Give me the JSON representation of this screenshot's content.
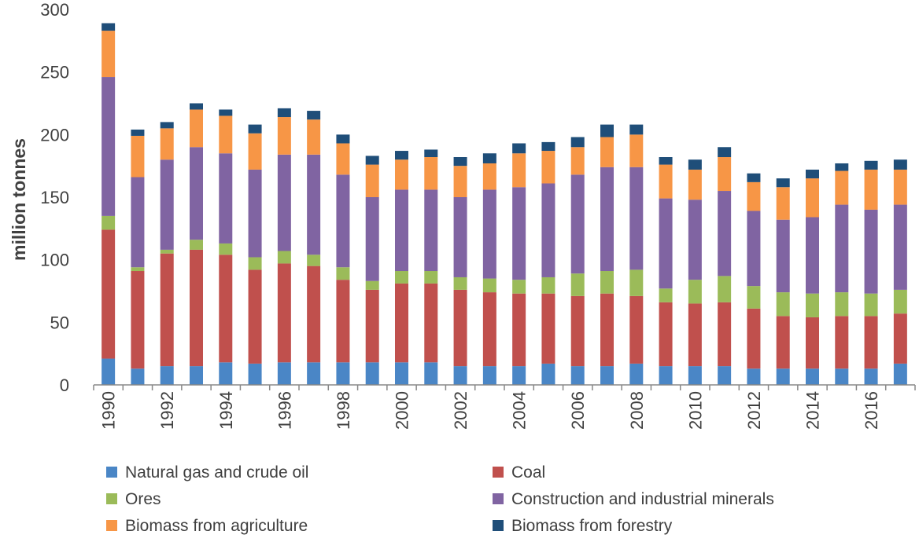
{
  "chart_data": {
    "type": "bar",
    "stacked": true,
    "title": "",
    "xlabel": "",
    "ylabel": "million tonnes",
    "ylim": [
      0,
      300
    ],
    "yticks": [
      0,
      50,
      100,
      150,
      200,
      250,
      300
    ],
    "grid": false,
    "legend_position": "bottom",
    "categories": [
      "1990",
      "1991",
      "1992",
      "1993",
      "1994",
      "1995",
      "1996",
      "1997",
      "1998",
      "1999",
      "2000",
      "2001",
      "2002",
      "2003",
      "2004",
      "2005",
      "2006",
      "2007",
      "2008",
      "2009",
      "2010",
      "2011",
      "2012",
      "2013",
      "2014",
      "2015",
      "2016",
      "2017"
    ],
    "x_tick_labels": [
      "1990",
      "",
      "1992",
      "",
      "1994",
      "",
      "1996",
      "",
      "1998",
      "",
      "2000",
      "",
      "2002",
      "",
      "2004",
      "",
      "2006",
      "",
      "2008",
      "",
      "2010",
      "",
      "2012",
      "",
      "2014",
      "",
      "2016",
      ""
    ],
    "series": [
      {
        "name": "Natural gas and crude oil",
        "color": "#4a86c6",
        "values": [
          21,
          13,
          15,
          15,
          18,
          17,
          18,
          18,
          18,
          18,
          18,
          18,
          15,
          15,
          15,
          17,
          15,
          15,
          17,
          15,
          15,
          15,
          13,
          13,
          13,
          13,
          13,
          17
        ]
      },
      {
        "name": "Coal",
        "color": "#c0504d",
        "values": [
          103,
          78,
          90,
          93,
          86,
          75,
          79,
          77,
          66,
          58,
          63,
          63,
          61,
          59,
          58,
          56,
          56,
          58,
          54,
          51,
          50,
          51,
          48,
          42,
          41,
          42,
          42,
          40
        ]
      },
      {
        "name": "Ores",
        "color": "#9bbb59",
        "values": [
          11,
          3,
          3,
          8,
          9,
          10,
          10,
          9,
          10,
          7,
          10,
          10,
          10,
          11,
          11,
          13,
          18,
          18,
          21,
          11,
          19,
          21,
          18,
          19,
          19,
          19,
          18,
          19
        ]
      },
      {
        "name": "Construction and industrial minerals",
        "color": "#8064a2",
        "values": [
          111,
          72,
          72,
          74,
          72,
          70,
          77,
          80,
          74,
          67,
          65,
          65,
          64,
          71,
          74,
          75,
          79,
          83,
          82,
          72,
          64,
          68,
          60,
          58,
          61,
          70,
          67,
          68
        ]
      },
      {
        "name": "Biomass from agriculture",
        "color": "#f79646",
        "values": [
          37,
          33,
          25,
          30,
          30,
          29,
          30,
          28,
          25,
          26,
          24,
          26,
          25,
          21,
          27,
          26,
          22,
          24,
          26,
          27,
          24,
          27,
          23,
          26,
          31,
          27,
          32,
          28
        ]
      },
      {
        "name": "Biomass from forestry",
        "color": "#1f4e79",
        "values": [
          6,
          5,
          5,
          5,
          5,
          7,
          7,
          7,
          7,
          7,
          7,
          6,
          7,
          8,
          8,
          7,
          8,
          10,
          8,
          6,
          8,
          8,
          7,
          7,
          7,
          6,
          7,
          8
        ]
      }
    ]
  }
}
